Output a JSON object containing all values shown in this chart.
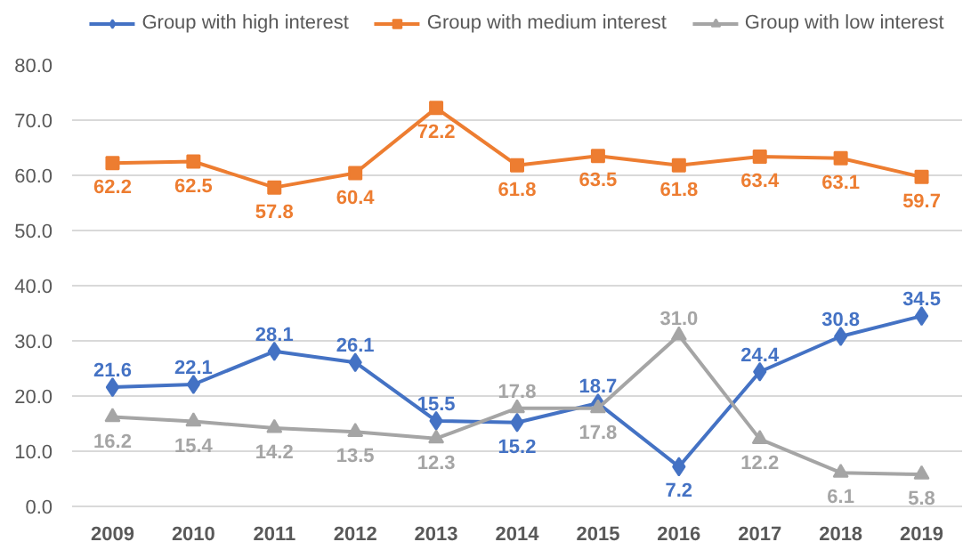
{
  "chart_data": {
    "type": "line",
    "categories": [
      "2009",
      "2010",
      "2011",
      "2012",
      "2013",
      "2014",
      "2015",
      "2016",
      "2017",
      "2018",
      "2019"
    ],
    "series": [
      {
        "name": "Group with high interest",
        "color": "#4472c4",
        "marker": "diamond",
        "values": [
          21.6,
          22.1,
          28.1,
          26.1,
          15.5,
          15.2,
          18.7,
          7.2,
          24.4,
          30.8,
          34.5
        ],
        "value_labels": [
          "21.6",
          "22.1",
          "28.1",
          "26.1",
          "15.5",
          "15.2",
          "18.7",
          "7.2",
          "24.4",
          "30.8",
          "34.5"
        ]
      },
      {
        "name": "Group with medium interest",
        "color": "#ed7d31",
        "marker": "square",
        "values": [
          62.2,
          62.5,
          57.8,
          60.4,
          72.2,
          61.8,
          63.5,
          61.8,
          63.4,
          63.1,
          59.7
        ],
        "value_labels": [
          "62.2",
          "62.5",
          "57.8",
          "60.4",
          "72.2",
          "61.8",
          "63.5",
          "61.8",
          "63.4",
          "63.1",
          "59.7"
        ]
      },
      {
        "name": "Group with low interest",
        "color": "#a5a5a5",
        "marker": "triangle",
        "values": [
          16.2,
          15.4,
          14.2,
          13.5,
          12.3,
          17.8,
          17.8,
          31.0,
          12.2,
          6.1,
          5.8
        ],
        "value_labels": [
          "16.2",
          "15.4",
          "14.2",
          "13.5",
          "12.3",
          "17.8",
          "17.8",
          "31.0",
          "12.2",
          "6.1",
          "5.8"
        ]
      }
    ],
    "ylim": [
      0,
      80
    ],
    "yticks": [
      {
        "value": 0,
        "label": "0.0"
      },
      {
        "value": 10,
        "label": "10.0"
      },
      {
        "value": 20,
        "label": "20.0"
      },
      {
        "value": 30,
        "label": "30.0"
      },
      {
        "value": 40,
        "label": "40.0"
      },
      {
        "value": 50,
        "label": "50.0"
      },
      {
        "value": 60,
        "label": "60.0"
      },
      {
        "value": 70,
        "label": "70.0"
      },
      {
        "value": 80,
        "label": "80.0"
      }
    ],
    "grid": "y",
    "legend": "top",
    "line_style": "solid"
  }
}
